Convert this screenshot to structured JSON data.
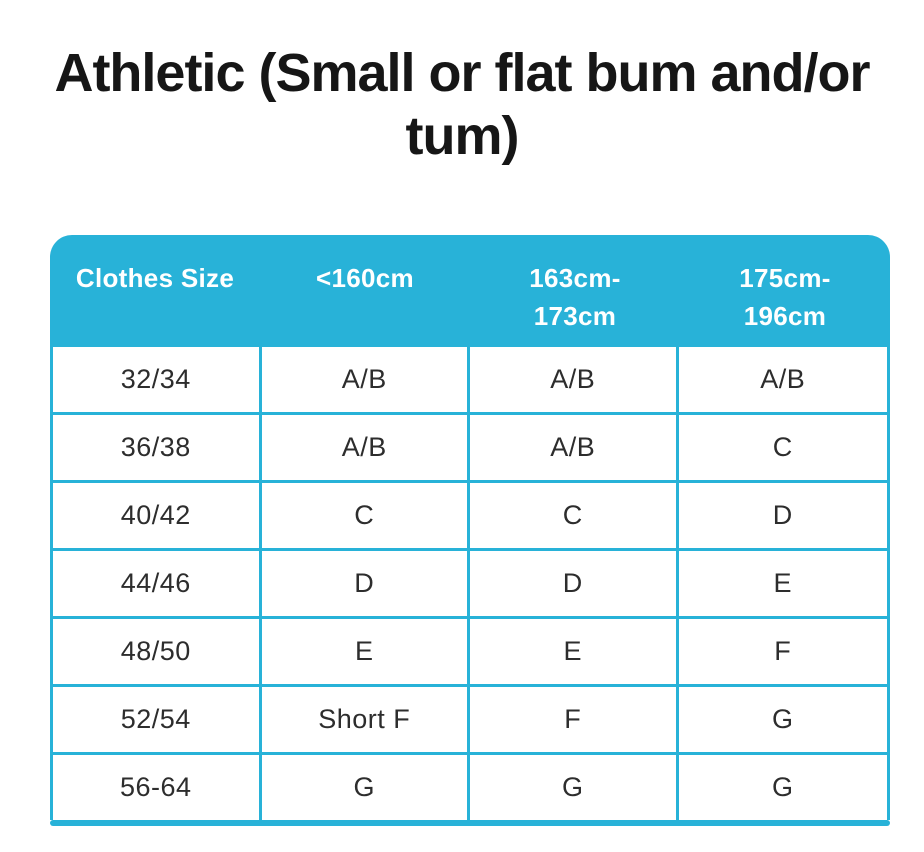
{
  "colors": {
    "accent": "#28b2d8",
    "header-text": "#ffffff",
    "title-text": "#161616",
    "cell-text": "#2d2d2d",
    "background": "#ffffff"
  },
  "title": {
    "line1": "Athletic (Small or flat bum and/or",
    "line2": "tum)"
  },
  "size_table": {
    "header": {
      "clothes_size": "Clothes Size",
      "col1_line1": "<160cm",
      "col2_line1": "163cm-",
      "col2_line2": "173cm",
      "col3_line1": "175cm-",
      "col3_line2": "196cm"
    },
    "rows": [
      {
        "size": "32/34",
        "c1": "A/B",
        "c2": "A/B",
        "c3": "A/B"
      },
      {
        "size": "36/38",
        "c1": "A/B",
        "c2": "A/B",
        "c3": "C"
      },
      {
        "size": "40/42",
        "c1": "C",
        "c2": "C",
        "c3": "D"
      },
      {
        "size": "44/46",
        "c1": "D",
        "c2": "D",
        "c3": "E"
      },
      {
        "size": "48/50",
        "c1": "E",
        "c2": "E",
        "c3": "F"
      },
      {
        "size": "52/54",
        "c1": "Short F",
        "c2": "F",
        "c3": "G"
      },
      {
        "size": "56-64",
        "c1": "G",
        "c2": "G",
        "c3": "G"
      }
    ]
  }
}
